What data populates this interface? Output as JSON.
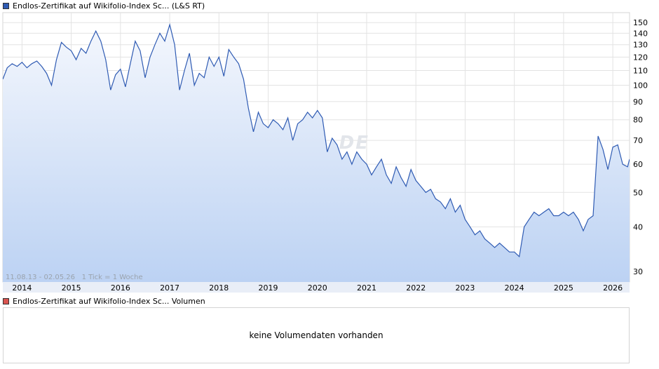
{
  "price_legend": {
    "label": "Endlos-Zertifikat auf Wikifolio-Index Sc... (L&S RT)",
    "color": "#2f5bb3"
  },
  "volume_legend": {
    "label": "Endlos-Zertifikat auf Wikifolio-Index Sc... Volumen",
    "color": "#d9534f"
  },
  "range_note": "11.08.13 - 02.05.26   1 Tick = 1 Woche",
  "watermark": "ARIVA.DE",
  "no_volume_text": "keine Volumendaten vorhanden",
  "chart_data": {
    "type": "area",
    "yscale": "log",
    "ylim": [
      28,
      160
    ],
    "yticks": [
      30,
      40,
      50,
      60,
      70,
      80,
      90,
      100,
      110,
      120,
      130,
      140,
      150
    ],
    "xlim": [
      2013.61,
      2026.34
    ],
    "xticks": [
      "2014",
      "2015",
      "2016",
      "2017",
      "2018",
      "2019",
      "2020",
      "2021",
      "2022",
      "2023",
      "2024",
      "2025",
      "2026"
    ],
    "line_color": "#2f5bb3",
    "fill_top": "#f4f7fd",
    "fill_bottom": "#bcd2f3",
    "grid": true,
    "x": [
      2013.61,
      2013.7,
      2013.8,
      2013.9,
      2014.0,
      2014.1,
      2014.2,
      2014.3,
      2014.4,
      2014.5,
      2014.6,
      2014.7,
      2014.8,
      2014.9,
      2015.0,
      2015.1,
      2015.2,
      2015.3,
      2015.4,
      2015.5,
      2015.6,
      2015.7,
      2015.8,
      2015.9,
      2016.0,
      2016.1,
      2016.2,
      2016.3,
      2016.4,
      2016.5,
      2016.6,
      2016.7,
      2016.8,
      2016.9,
      2017.0,
      2017.1,
      2017.2,
      2017.3,
      2017.4,
      2017.5,
      2017.6,
      2017.7,
      2017.8,
      2017.9,
      2018.0,
      2018.1,
      2018.2,
      2018.3,
      2018.4,
      2018.5,
      2018.6,
      2018.7,
      2018.8,
      2018.9,
      2019.0,
      2019.1,
      2019.2,
      2019.3,
      2019.4,
      2019.5,
      2019.6,
      2019.7,
      2019.8,
      2019.9,
      2020.0,
      2020.1,
      2020.2,
      2020.3,
      2020.4,
      2020.5,
      2020.6,
      2020.7,
      2020.8,
      2020.9,
      2021.0,
      2021.1,
      2021.2,
      2021.3,
      2021.4,
      2021.5,
      2021.6,
      2021.7,
      2021.8,
      2021.9,
      2022.0,
      2022.1,
      2022.2,
      2022.3,
      2022.4,
      2022.5,
      2022.6,
      2022.7,
      2022.8,
      2022.9,
      2023.0,
      2023.1,
      2023.2,
      2023.3,
      2023.4,
      2023.5,
      2023.6,
      2023.7,
      2023.8,
      2023.9,
      2024.0,
      2024.1,
      2024.2,
      2024.3,
      2024.4,
      2024.5,
      2024.6,
      2024.7,
      2024.8,
      2024.9,
      2025.0,
      2025.1,
      2025.2,
      2025.3,
      2025.4,
      2025.5,
      2025.6,
      2025.7,
      2025.8,
      2025.9,
      2026.0,
      2026.1,
      2026.2,
      2026.3,
      2026.34
    ],
    "y": [
      104,
      112,
      115,
      113,
      116,
      112,
      115,
      117,
      113,
      108,
      100,
      118,
      132,
      128,
      125,
      118,
      127,
      123,
      133,
      142,
      133,
      118,
      97,
      107,
      111,
      99,
      115,
      133,
      125,
      105,
      120,
      130,
      140,
      133,
      148,
      130,
      97,
      110,
      123,
      100,
      108,
      105,
      120,
      113,
      120,
      106,
      126,
      120,
      115,
      104,
      86,
      74,
      84,
      78,
      76,
      80,
      78,
      75,
      81,
      70,
      78,
      80,
      84,
      81,
      85,
      81,
      65,
      71,
      68,
      62,
      65,
      60,
      65,
      62,
      60,
      56,
      59,
      62,
      56,
      53,
      59,
      55,
      52,
      58,
      54,
      52,
      50,
      51,
      48,
      47,
      45,
      48,
      44,
      46,
      42,
      40,
      38,
      39,
      37,
      36,
      35,
      36,
      35,
      34,
      34,
      33,
      40,
      42,
      44,
      43,
      44,
      45,
      43,
      43,
      44,
      43,
      44,
      42,
      39,
      42,
      43,
      72,
      66,
      58,
      67,
      68,
      60,
      59,
      62
    ]
  }
}
